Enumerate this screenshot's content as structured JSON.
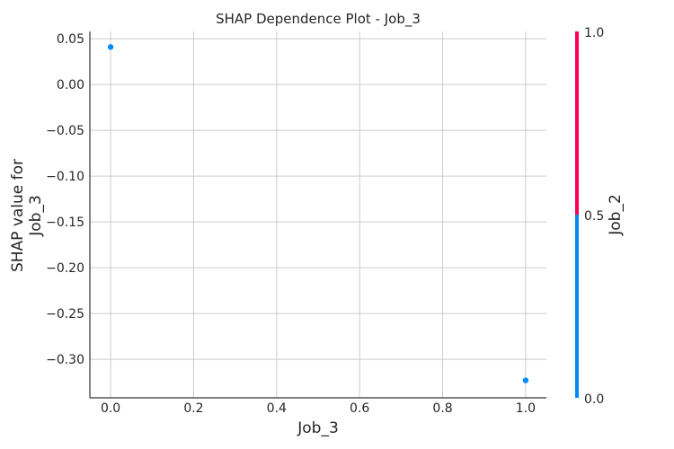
{
  "chart_data": {
    "type": "scatter",
    "title": "SHAP Dependence Plot - Job_3",
    "xlabel": "Job_3",
    "ylabel_lines": [
      "SHAP value for",
      "Job_3"
    ],
    "xlim": [
      -0.05,
      1.05
    ],
    "ylim": [
      -0.342,
      0.058
    ],
    "xticks": [
      0.0,
      0.2,
      0.4,
      0.6,
      0.8,
      1.0
    ],
    "xtick_labels": [
      "0.0",
      "0.2",
      "0.4",
      "0.6",
      "0.8",
      "1.0"
    ],
    "yticks": [
      0.05,
      0.0,
      -0.05,
      -0.1,
      -0.15,
      -0.2,
      -0.25,
      -0.3
    ],
    "ytick_labels": [
      "0.05",
      "0.00",
      "−0.05",
      "−0.10",
      "−0.15",
      "−0.20",
      "−0.25",
      "−0.30"
    ],
    "grid": true,
    "points": [
      {
        "x": 0.0,
        "y": 0.041,
        "color_value": 0.0
      },
      {
        "x": 1.0,
        "y": -0.323,
        "color_value": 0.0
      }
    ],
    "colorbar": {
      "label": "Job_2",
      "range": [
        0.0,
        1.0
      ],
      "tick_labels": [
        "0.0",
        "0.5",
        "1.0"
      ],
      "low_color": "#008bfb",
      "high_color": "#ff0052"
    },
    "grid_color": "#cccccc",
    "point_color": "#008bfb"
  }
}
